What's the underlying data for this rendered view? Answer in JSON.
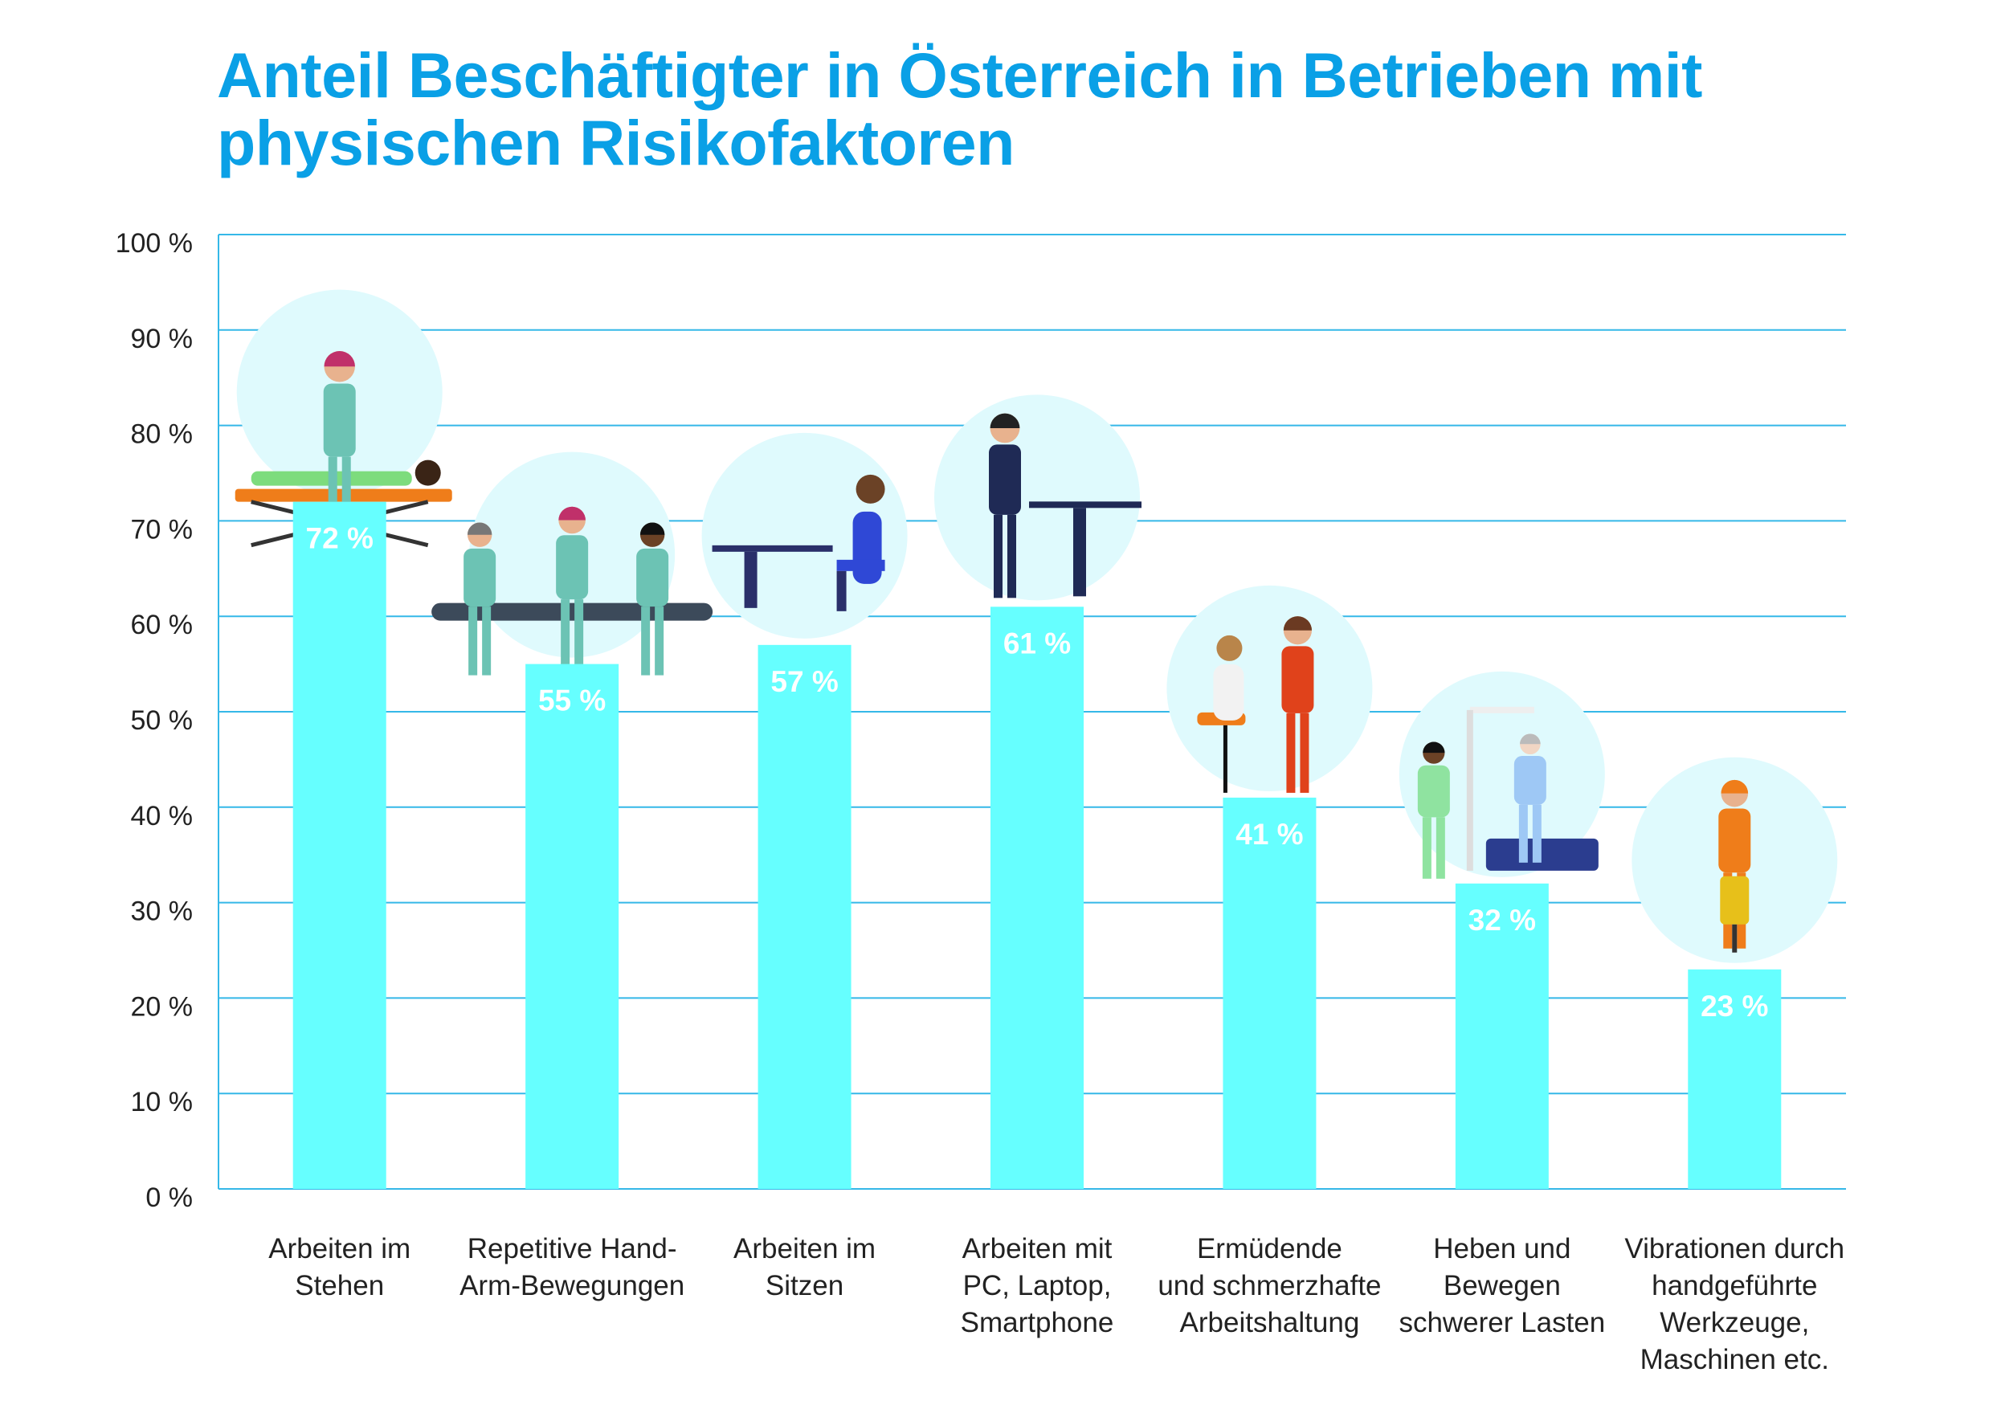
{
  "title_lines": [
    "Anteil Beschäftigter in Österreich in Betrieben mit",
    "physischen Risikofaktoren"
  ],
  "colors": {
    "title": "#0aa0e6",
    "bar": "#66ffff",
    "grid": "#35b8e8",
    "circle": "#dffafd",
    "value_label": "#ffffff"
  },
  "chart_data": {
    "type": "bar",
    "title": "Anteil Beschäftigter in Österreich in Betrieben mit physischen Risikofaktoren",
    "xlabel": "",
    "ylabel": "",
    "ylim": [
      0,
      100
    ],
    "grid": true,
    "y_ticks": [
      "0 %",
      "10 %",
      "20 %",
      "30 %",
      "40 %",
      "50 %",
      "60 %",
      "70 %",
      "80 %",
      "90 %",
      "100 %"
    ],
    "categories": [
      [
        "Arbeiten im",
        "Stehen"
      ],
      [
        "Repetitive Hand-",
        "Arm-Bewegungen"
      ],
      [
        "Arbeiten im",
        "Sitzen"
      ],
      [
        "Arbeiten mit",
        "PC, Laptop,",
        "Smartphone"
      ],
      [
        "Ermüdende",
        "und schmerzhafte",
        "Arbeitshaltung"
      ],
      [
        "Heben und",
        "Bewegen",
        "schwerer Lasten"
      ],
      [
        "Vibrationen durch",
        "handgeführte",
        "Werkzeuge,",
        "Maschinen etc."
      ]
    ],
    "values": [
      72,
      55,
      57,
      61,
      41,
      32,
      23
    ],
    "value_labels": [
      "72 %",
      "55 %",
      "57 %",
      "61 %",
      "41 %",
      "32 %",
      "23 %"
    ],
    "icons": [
      "massage-therapist-icon",
      "assembly-line-workers-icon",
      "seated-desk-worker-icon",
      "standing-desk-worker-icon",
      "hairdresser-icon",
      "patient-lift-caregiver-icon",
      "jackhammer-worker-icon"
    ]
  }
}
